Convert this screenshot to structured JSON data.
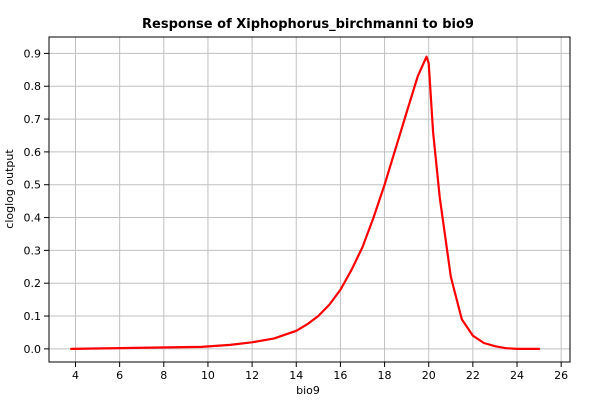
{
  "chart_data": {
    "type": "line",
    "title": "Response of Xiphophorus_birchmanni to bio9",
    "xlabel": "bio9",
    "ylabel": "cloglog output",
    "xlim": [
      2.8,
      26.4
    ],
    "ylim": [
      -0.04,
      0.95
    ],
    "x_ticks": [
      4,
      6,
      8,
      10,
      12,
      14,
      16,
      18,
      20,
      22,
      24,
      26
    ],
    "y_ticks": [
      0.0,
      0.1,
      0.2,
      0.3,
      0.4,
      0.5,
      0.6,
      0.7,
      0.8,
      0.9
    ],
    "grid": true,
    "series": [
      {
        "color": "#ff0000",
        "x": [
          3.8,
          6.7,
          9.7,
          11.0,
          12.0,
          13.0,
          14.0,
          14.5,
          15.0,
          15.5,
          16.0,
          16.5,
          17.0,
          17.5,
          18.0,
          18.5,
          19.0,
          19.5,
          19.9,
          20.0,
          20.2,
          20.5,
          21.0,
          21.5,
          22.0,
          22.5,
          23.0,
          23.5,
          24.0,
          25.0
        ],
        "values": [
          0.0,
          0.003,
          0.006,
          0.012,
          0.02,
          0.032,
          0.055,
          0.075,
          0.1,
          0.135,
          0.18,
          0.24,
          0.31,
          0.4,
          0.5,
          0.61,
          0.72,
          0.83,
          0.89,
          0.87,
          0.66,
          0.46,
          0.22,
          0.09,
          0.04,
          0.018,
          0.008,
          0.002,
          0.0,
          0.0
        ]
      }
    ]
  }
}
